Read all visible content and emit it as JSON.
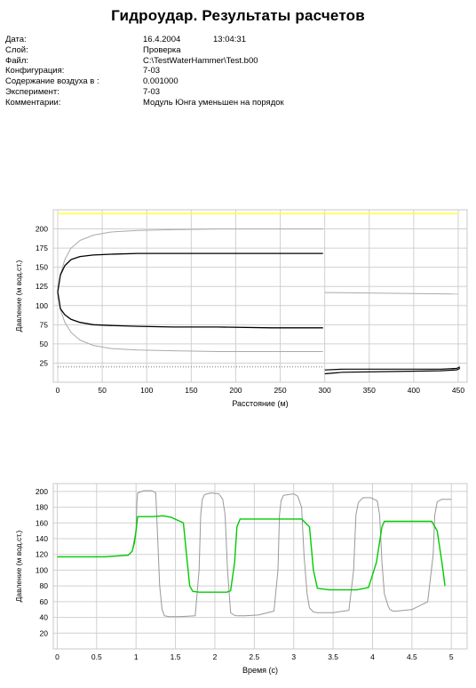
{
  "title": "Гидроудар. Результаты расчетов",
  "meta": [
    {
      "label": "Дата:",
      "value": "16.4.2004",
      "extra": "13:04:31"
    },
    {
      "label": "Слой:",
      "value": "Проверка"
    },
    {
      "label": "Файл:",
      "value": "C:\\TestWaterHammer\\Test.b00"
    },
    {
      "label": "Конфигурация:",
      "value": "7-03"
    },
    {
      "label": "Содержание воздуха в :",
      "value": "0.001000"
    },
    {
      "label": "Эксперимент:",
      "value": "7-03"
    },
    {
      "label": "Комментарии:",
      "value": "Модуль Юнга уменьшен на порядок"
    }
  ],
  "chart_data": [
    {
      "type": "line",
      "xlabel": "Расстояние (м)",
      "ylabel": "Давление (м вод.ст.)",
      "xlim": [
        -5,
        460
      ],
      "ylim": [
        0,
        225
      ],
      "xticks": [
        "0",
        "50",
        "100",
        "150",
        "200",
        "250",
        "300",
        "350",
        "400",
        "450"
      ],
      "yticks": [
        "25",
        "50",
        "75",
        "100",
        "125",
        "150",
        "175",
        "200"
      ],
      "grid": true,
      "colors": {
        "upper_limit": "#ffff44",
        "envelope_outer": "#aaaaaa",
        "envelope_inner": "#000000",
        "ground": "#777777"
      },
      "series": [
        {
          "color": "#ffff44",
          "width": 1.6,
          "x": [
            0,
            450
          ],
          "y": [
            220,
            220
          ]
        },
        {
          "color": "#aaaaaa",
          "width": 1,
          "x": [
            0,
            3,
            8,
            15,
            25,
            40,
            60,
            90,
            130,
            180,
            240,
            298
          ],
          "y": [
            118,
            140,
            160,
            175,
            185,
            192,
            196,
            198,
            199,
            200,
            200,
            200
          ]
        },
        {
          "color": "#aaaaaa",
          "width": 1,
          "x": [
            0,
            3,
            8,
            15,
            25,
            40,
            60,
            90,
            130,
            180,
            240,
            298
          ],
          "y": [
            118,
            95,
            78,
            65,
            55,
            48,
            44,
            42,
            41,
            40,
            40,
            40
          ]
        },
        {
          "color": "#000000",
          "width": 1.3,
          "x": [
            0,
            3,
            8,
            15,
            25,
            40,
            60,
            90,
            130,
            180,
            240,
            298
          ],
          "y": [
            118,
            140,
            152,
            160,
            164,
            166,
            167,
            168,
            168,
            168,
            168,
            168
          ]
        },
        {
          "color": "#000000",
          "width": 1.3,
          "x": [
            0,
            3,
            8,
            15,
            25,
            40,
            60,
            90,
            130,
            180,
            240,
            298
          ],
          "y": [
            118,
            96,
            88,
            82,
            78,
            75,
            74,
            73,
            72,
            72,
            71,
            71
          ]
        },
        {
          "color": "#aaaaaa",
          "width": 1,
          "x": [
            300,
            450
          ],
          "y": [
            117,
            115
          ]
        },
        {
          "color": "#000000",
          "width": 1.2,
          "x": [
            300,
            320,
            380,
            430,
            448,
            452
          ],
          "y": [
            16,
            17,
            17,
            17,
            18,
            20
          ]
        },
        {
          "color": "#000000",
          "width": 1.2,
          "x": [
            300,
            320,
            380,
            430,
            448,
            452
          ],
          "y": [
            11,
            13,
            14,
            15,
            16,
            18
          ]
        },
        {
          "color": "#777777",
          "width": 1,
          "dash": "1,2",
          "x": [
            0,
            298
          ],
          "y": [
            20,
            20
          ]
        }
      ]
    },
    {
      "type": "line",
      "xlabel": "Время (с)",
      "ylabel": "Давление (м вод.ст.)",
      "xlim": [
        -0.05,
        5.2
      ],
      "ylim": [
        0,
        210
      ],
      "xticks": [
        "0",
        "0.5",
        "1",
        "1.5",
        "2",
        "2.5",
        "3",
        "3.5",
        "4",
        "4.5",
        "5"
      ],
      "yticks": [
        "20",
        "40",
        "60",
        "80",
        "100",
        "120",
        "140",
        "160",
        "180",
        "200"
      ],
      "grid": true,
      "colors": {
        "line_1": "#999999",
        "line_2": "#00cc00"
      },
      "series": [
        {
          "color": "#999999",
          "width": 1,
          "x": [
            0,
            0.6,
            0.9,
            0.95,
            0.98,
            1.0,
            1.01,
            1.02,
            1.1,
            1.2,
            1.25,
            1.27,
            1.3,
            1.33,
            1.36,
            1.42,
            1.55,
            1.75,
            1.8,
            1.82,
            1.84,
            1.87,
            1.95,
            2.05,
            2.1,
            2.13,
            2.16,
            2.19,
            2.2,
            2.24,
            2.28,
            2.38,
            2.55,
            2.75,
            2.8,
            2.82,
            2.84,
            2.87,
            3.0,
            3.05,
            3.1,
            3.13,
            3.17,
            3.2,
            3.25,
            3.3,
            3.5,
            3.7,
            3.76,
            3.79,
            3.82,
            3.88,
            3.98,
            4.06,
            4.09,
            4.12,
            4.15,
            4.2,
            4.22,
            4.26,
            4.3,
            4.5,
            4.7,
            4.77,
            4.79,
            4.82,
            4.88,
            4.92,
            5.0
          ],
          "y": [
            117,
            117,
            119,
            124,
            140,
            150,
            185,
            198,
            201,
            201,
            198,
            150,
            80,
            50,
            42,
            41,
            41,
            42,
            100,
            170,
            190,
            196,
            198,
            197,
            190,
            170,
            100,
            60,
            46,
            43,
            42,
            42,
            43,
            48,
            100,
            170,
            188,
            195,
            197,
            194,
            180,
            120,
            70,
            52,
            47,
            46,
            46,
            49,
            100,
            170,
            186,
            192,
            192,
            188,
            170,
            110,
            70,
            54,
            50,
            48,
            48,
            50,
            60,
            120,
            170,
            187,
            190,
            190,
            190
          ]
        },
        {
          "color": "#00cc00",
          "width": 1.4,
          "x": [
            0,
            0.6,
            0.9,
            0.95,
            0.98,
            1.0,
            1.02,
            1.05,
            1.2,
            1.35,
            1.45,
            1.6,
            1.65,
            1.68,
            1.72,
            1.8,
            1.95,
            2.15,
            2.2,
            2.25,
            2.28,
            2.32,
            2.5,
            2.7,
            2.85,
            3.1,
            3.2,
            3.25,
            3.3,
            3.45,
            3.65,
            3.8,
            3.95,
            4.05,
            4.12,
            4.15,
            4.3,
            4.5,
            4.75,
            4.82,
            4.88,
            4.92
          ],
          "y": [
            117,
            117,
            119,
            124,
            135,
            150,
            168,
            168,
            168,
            169,
            167,
            160,
            110,
            80,
            73,
            72,
            72,
            72,
            74,
            110,
            155,
            165,
            165,
            165,
            165,
            165,
            155,
            100,
            77,
            75,
            75,
            75,
            78,
            110,
            155,
            162,
            162,
            162,
            162,
            150,
            110,
            80
          ]
        }
      ]
    }
  ]
}
